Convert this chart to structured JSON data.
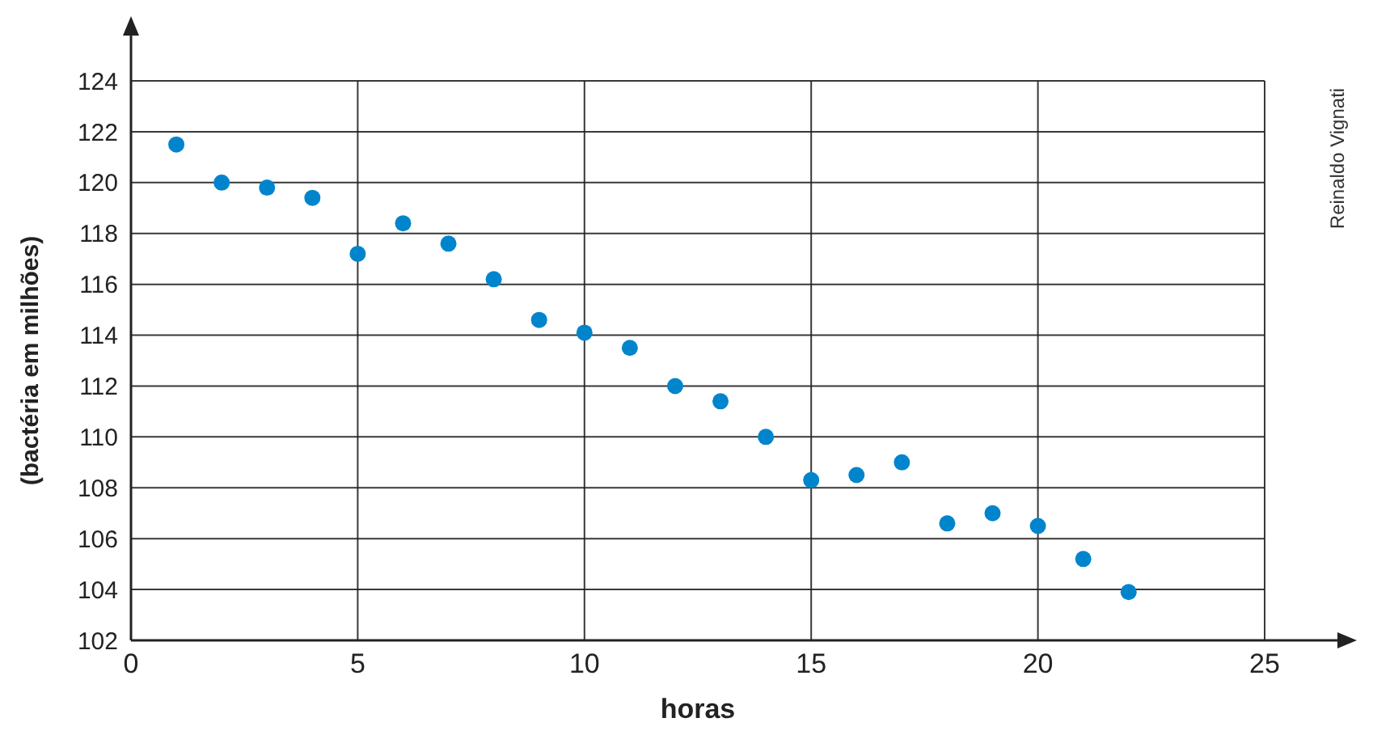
{
  "chart_data": {
    "type": "scatter",
    "xlabel": "horas",
    "ylabel": "(bactéria em milhões)",
    "x": [
      1,
      2,
      3,
      4,
      5,
      6,
      7,
      8,
      9,
      10,
      11,
      12,
      13,
      14,
      15,
      16,
      17,
      18,
      19,
      20,
      21,
      22
    ],
    "series": [
      {
        "color": "#0085cc",
        "values": [
          121.5,
          120.0,
          119.8,
          119.4,
          117.2,
          118.4,
          117.6,
          116.2,
          114.6,
          114.1,
          113.5,
          112.0,
          111.4,
          110.0,
          108.3,
          108.5,
          109.0,
          106.6,
          107.0,
          106.5,
          105.2,
          103.9
        ]
      }
    ],
    "xlim": [
      0,
      25
    ],
    "xticks": [
      0,
      5,
      10,
      15,
      20,
      25
    ],
    "ylim": [
      102,
      124
    ],
    "yticks": [
      102,
      104,
      106,
      108,
      110,
      112,
      114,
      116,
      118,
      120,
      122,
      124
    ],
    "grid": true,
    "marker": "circle",
    "annotations": [
      "Reinaldo Vignati"
    ]
  }
}
